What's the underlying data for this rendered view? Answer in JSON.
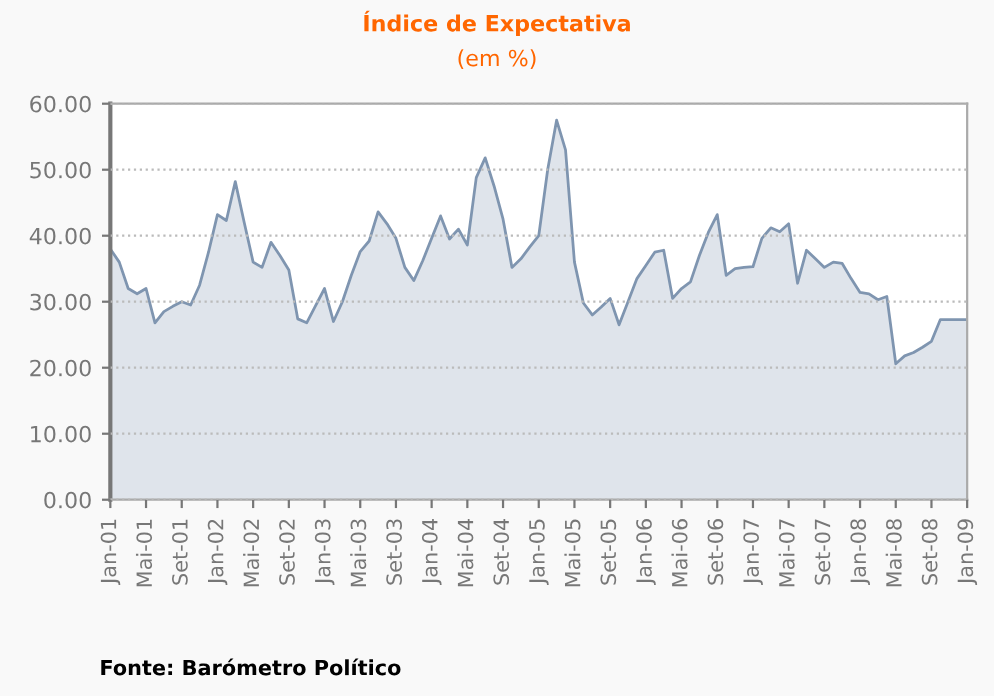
{
  "chart_data": {
    "type": "area",
    "title": "Índice de Expectativa",
    "subtitle": "(em %)",
    "annotations": [
      "Fonte: Barómetro Político"
    ],
    "x": [
      "2001-01",
      "2001-02",
      "2001-03",
      "2001-04",
      "2001-05",
      "2001-06",
      "2001-07",
      "2001-08",
      "2001-09",
      "2001-10",
      "2001-11",
      "2001-12",
      "2002-01",
      "2002-02",
      "2002-03",
      "2002-04",
      "2002-05",
      "2002-06",
      "2002-07",
      "2002-08",
      "2002-09",
      "2002-10",
      "2002-11",
      "2002-12",
      "2003-01",
      "2003-02",
      "2003-03",
      "2003-04",
      "2003-05",
      "2003-06",
      "2003-07",
      "2003-08",
      "2003-09",
      "2003-10",
      "2003-11",
      "2003-12",
      "2004-01",
      "2004-02",
      "2004-03",
      "2004-04",
      "2004-05",
      "2004-06",
      "2004-07",
      "2004-08",
      "2004-09",
      "2004-10",
      "2004-11",
      "2004-12",
      "2005-01",
      "2005-02",
      "2005-03",
      "2005-04",
      "2005-05",
      "2005-06",
      "2005-07",
      "2005-08",
      "2005-09",
      "2005-10",
      "2005-11",
      "2005-12",
      "2006-01",
      "2006-02",
      "2006-03",
      "2006-04",
      "2006-05",
      "2006-06",
      "2006-07",
      "2006-08",
      "2006-09",
      "2006-10",
      "2006-11",
      "2006-12",
      "2007-01",
      "2007-02",
      "2007-03",
      "2007-04",
      "2007-05",
      "2007-06",
      "2007-07",
      "2007-08",
      "2007-09",
      "2007-10",
      "2007-11",
      "2007-12",
      "2008-01",
      "2008-02",
      "2008-03",
      "2008-04",
      "2008-05",
      "2008-06",
      "2008-07",
      "2008-08",
      "2008-09",
      "2008-10",
      "2008-11",
      "2008-12",
      "2009-01"
    ],
    "series": [
      {
        "color": "#7f95b0",
        "values": [
          38,
          36,
          32,
          31.2,
          32,
          26.8,
          28.5,
          29.3,
          30,
          29.5,
          32.5,
          37.5,
          43.2,
          42.3,
          48.2,
          42,
          36,
          35.2,
          39,
          37,
          34.8,
          27.4,
          26.8,
          29.4,
          32,
          27,
          30,
          34,
          37.6,
          39.2,
          43.6,
          41.8,
          39.6,
          35.2,
          33.2,
          36.2,
          39.6,
          43,
          39.5,
          41,
          38.6,
          48.8,
          51.8,
          47.5,
          42.5,
          35.2,
          36.5,
          38.3,
          40,
          50,
          57.5,
          53,
          36,
          29.8,
          28,
          29.2,
          30.5,
          26.5,
          30,
          33.5,
          35.5,
          37.5,
          37.8,
          30.5,
          32,
          33,
          37,
          40.5,
          43.2,
          34,
          35,
          35.2,
          35.3,
          39.6,
          41.2,
          40.6,
          41.8,
          32.8,
          37.8,
          36.5,
          35.2,
          36,
          35.8,
          33.5,
          31.4,
          31.2,
          30.3,
          30.8,
          20.6,
          21.8,
          22.3,
          23.1,
          24,
          27.3,
          27.3,
          27.3,
          27.3
        ]
      }
    ],
    "xlim": [
      "2001-01",
      "2009-01"
    ],
    "xticks": [
      {
        "value": "2001-01",
        "label": "Jan-01"
      },
      {
        "value": "2001-05",
        "label": "Mai-01"
      },
      {
        "value": "2001-09",
        "label": "Set-01"
      },
      {
        "value": "2002-01",
        "label": "Jan-02"
      },
      {
        "value": "2002-05",
        "label": "Mai-02"
      },
      {
        "value": "2002-09",
        "label": "Set-02"
      },
      {
        "value": "2003-01",
        "label": "Jan-03"
      },
      {
        "value": "2003-05",
        "label": "Mai-03"
      },
      {
        "value": "2003-09",
        "label": "Set-03"
      },
      {
        "value": "2004-01",
        "label": "Jan-04"
      },
      {
        "value": "2004-05",
        "label": "Mai-04"
      },
      {
        "value": "2004-09",
        "label": "Set-04"
      },
      {
        "value": "2005-01",
        "label": "Jan-05"
      },
      {
        "value": "2005-05",
        "label": "Mai-05"
      },
      {
        "value": "2005-09",
        "label": "Set-05"
      },
      {
        "value": "2006-01",
        "label": "Jan-06"
      },
      {
        "value": "2006-05",
        "label": "Mai-06"
      },
      {
        "value": "2006-09",
        "label": "Set-06"
      },
      {
        "value": "2007-01",
        "label": "Jan-07"
      },
      {
        "value": "2007-05",
        "label": "Mai-07"
      },
      {
        "value": "2007-09",
        "label": "Set-07"
      },
      {
        "value": "2008-01",
        "label": "Jan-08"
      },
      {
        "value": "2008-05",
        "label": "Mai-08"
      },
      {
        "value": "2008-09",
        "label": "Set-08"
      },
      {
        "value": "2009-01",
        "label": "Jan-09"
      }
    ],
    "ylim": [
      0,
      60
    ],
    "yticks": [
      {
        "value": 0,
        "label": "0.00"
      },
      {
        "value": 10,
        "label": "10.00"
      },
      {
        "value": 20,
        "label": "20.00"
      },
      {
        "value": 30,
        "label": "30.00"
      },
      {
        "value": 40,
        "label": "40.00"
      },
      {
        "value": 50,
        "label": "50.00"
      },
      {
        "value": 60,
        "label": "60.00"
      }
    ],
    "grid": "y",
    "legend": false,
    "marker": "none",
    "line_style": "solid"
  }
}
